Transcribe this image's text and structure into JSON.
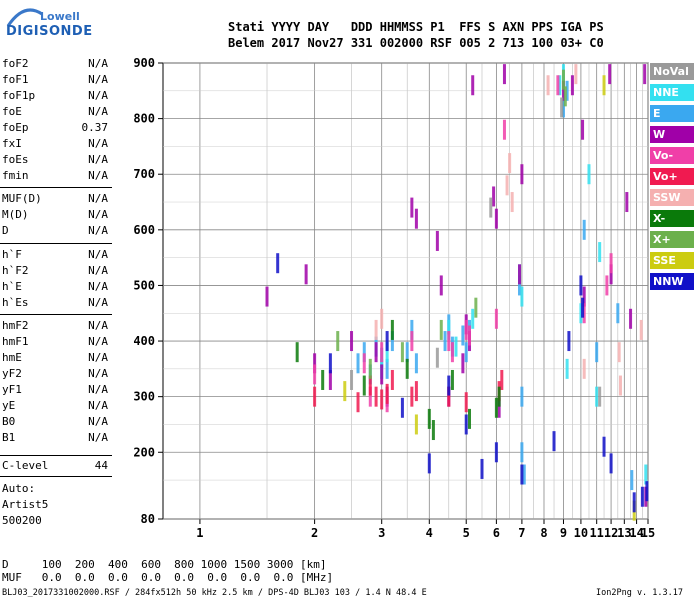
{
  "logo": {
    "line1": "Lowell",
    "line2": "DIGISONDE"
  },
  "header": {
    "labels": "Stati YYYY DAY   DDD HHMMSS P1  FFS S AXN PPS IGA PS",
    "values": "Belem 2017 Nov27 331 002000 RSF 005 2 713 100 03+ C0"
  },
  "parameters": {
    "group1": [
      {
        "name": "foF2",
        "value": "N/A"
      },
      {
        "name": "foF1",
        "value": "N/A"
      },
      {
        "name": "foF1p",
        "value": "N/A"
      },
      {
        "name": "foE",
        "value": "N/A"
      },
      {
        "name": "foEp",
        "value": "0.37"
      },
      {
        "name": "fxI",
        "value": "N/A"
      },
      {
        "name": "foEs",
        "value": "N/A"
      },
      {
        "name": "fmin",
        "value": "N/A"
      }
    ],
    "group2": [
      {
        "name": "MUF(D)",
        "value": "N/A"
      },
      {
        "name": "M(D)",
        "value": "N/A"
      },
      {
        "name": "D",
        "value": "N/A"
      }
    ],
    "group3": [
      {
        "name": "h`F",
        "value": "N/A"
      },
      {
        "name": "h`F2",
        "value": "N/A"
      },
      {
        "name": "h`E",
        "value": "N/A"
      },
      {
        "name": "h`Es",
        "value": "N/A"
      }
    ],
    "group4": [
      {
        "name": "hmF2",
        "value": "N/A"
      },
      {
        "name": "hmF1",
        "value": "N/A"
      },
      {
        "name": "hmE",
        "value": "N/A"
      },
      {
        "name": "yF2",
        "value": "N/A"
      },
      {
        "name": "yF1",
        "value": "N/A"
      },
      {
        "name": "yE",
        "value": "N/A"
      },
      {
        "name": "B0",
        "value": "N/A"
      },
      {
        "name": "B1",
        "value": "N/A"
      }
    ],
    "clevel": {
      "name": "C-level",
      "value": "44"
    }
  },
  "auto": {
    "line1": "Auto:",
    "line2": "Artist5",
    "line3": "500200"
  },
  "bottom": {
    "d_row": "D     100  200  400  600  800 1000 1500 3000 [km]",
    "muf_row": "MUF   0.0  0.0  0.0  0.0  0.0  0.0  0.0  0.0 [MHz]"
  },
  "footer": {
    "left": "BLJ03_2017331002000.RSF / 284fx512h 50 kHz 2.5 km / DPS-4D BLJ03 103 / 1.4 N 48.4 E",
    "right": "Ion2Png v. 1.3.17"
  },
  "legend": [
    {
      "label": "NoVal",
      "color": "#9a9a9a"
    },
    {
      "label": "NNE",
      "color": "#33e0f0"
    },
    {
      "label": "E",
      "color": "#3aa8f0"
    },
    {
      "label": "W",
      "color": "#a000a8"
    },
    {
      "label": "Vo-",
      "color": "#f03fa8"
    },
    {
      "label": "Vo+",
      "color": "#f01a50"
    },
    {
      "label": "SSW",
      "color": "#f5b0b0"
    },
    {
      "label": "X-",
      "color": "#0a7a0a"
    },
    {
      "label": "X+",
      "color": "#6cb04c"
    },
    {
      "label": "SSE",
      "color": "#cccc10"
    },
    {
      "label": "NNW",
      "color": "#1010c8"
    }
  ],
  "chart_data": {
    "type": "scatter",
    "title": "",
    "xlabel": "",
    "ylabel": "",
    "x_scale": "log",
    "xlim": [
      0.8,
      15
    ],
    "ylim": [
      80,
      900
    ],
    "x_ticks": [
      1,
      2,
      3,
      4,
      5,
      6,
      7,
      8,
      9,
      10,
      11,
      12,
      13,
      14,
      15
    ],
    "y_ticks": [
      80,
      200,
      300,
      400,
      500,
      600,
      700,
      800,
      900
    ],
    "grid": true,
    "series": [
      {
        "color": "#3aa8f0",
        "x": [
          2.6,
          2.7,
          2.8,
          2.9,
          3.0,
          3.1,
          3.2,
          3.5,
          3.6,
          3.7,
          4.4,
          4.5,
          4.6,
          4.9,
          5.0,
          5.1,
          6.9,
          7.0,
          7.0,
          7.1,
          9.0,
          9.2,
          10.2,
          11.0,
          12.5,
          13.6
        ],
        "y": [
          360,
          380,
          340,
          390,
          370,
          350,
          400,
          380,
          420,
          360,
          400,
          430,
          390,
          410,
          380,
          420,
          500,
          300,
          200,
          160,
          820,
          850,
          600,
          380,
          450,
          150
        ]
      },
      {
        "color": "#33e0f0",
        "x": [
          3.0,
          3.1,
          4.5,
          4.7,
          5.2,
          6.9,
          7.0,
          8.8,
          9.0,
          9.2,
          10.0,
          10.5,
          11.0,
          11.2,
          14.8
        ],
        "y": [
          350,
          380,
          420,
          390,
          440,
          520,
          480,
          860,
          880,
          350,
          450,
          700,
          300,
          560,
          160
        ]
      },
      {
        "color": "#a000a8",
        "x": [
          1.5,
          1.9,
          2.0,
          2.2,
          2.5,
          2.9,
          3.0,
          3.1,
          3.6,
          3.7,
          4.2,
          4.3,
          4.5,
          4.9,
          5.0,
          5.1,
          5.2,
          5.9,
          6.0,
          6.1,
          6.3,
          6.9,
          7.0,
          9.0,
          9.5,
          10.1,
          10.2,
          11.9,
          12.0,
          13.2,
          13.5,
          14.7,
          14.8
        ],
        "y": [
          480,
          520,
          360,
          330,
          400,
          380,
          340,
          300,
          640,
          620,
          580,
          500,
          300,
          360,
          430,
          400,
          860,
          660,
          620,
          280,
          880,
          520,
          700,
          850,
          860,
          780,
          480,
          880,
          520,
          650,
          440,
          880,
          120
        ]
      },
      {
        "color": "#f03fa8",
        "x": [
          2.0,
          2.7,
          2.8,
          3.0,
          3.1,
          3.6,
          4.5,
          4.6,
          5.0,
          5.1,
          6.0,
          6.3,
          8.7,
          10.2,
          11.7,
          12.0
        ],
        "y": [
          340,
          360,
          300,
          380,
          290,
          400,
          400,
          380,
          420,
          410,
          440,
          780,
          860,
          450,
          500,
          540
        ]
      },
      {
        "color": "#f01a50",
        "x": [
          2.0,
          2.6,
          2.8,
          2.9,
          3.0,
          3.1,
          3.2,
          3.6,
          3.7,
          4.5,
          5.0,
          6.1,
          6.2
        ],
        "y": [
          300,
          290,
          320,
          300,
          295,
          305,
          330,
          300,
          310,
          300,
          290,
          310,
          330
        ]
      },
      {
        "color": "#f5b0b0",
        "x": [
          2.9,
          3.0,
          6.4,
          6.5,
          6.6,
          8.2,
          9.7,
          10.2,
          12.6,
          12.7,
          14.4
        ],
        "y": [
          420,
          440,
          680,
          720,
          650,
          860,
          880,
          350,
          380,
          320,
          420
        ]
      },
      {
        "color": "#0a7a0a",
        "x": [
          1.8,
          2.1,
          2.7,
          3.2,
          3.5,
          4.0,
          4.1,
          4.6,
          5.1,
          6.0,
          6.1
        ],
        "y": [
          380,
          330,
          320,
          420,
          350,
          260,
          240,
          330,
          260,
          280,
          300
        ]
      },
      {
        "color": "#6cb04c",
        "x": [
          2.3,
          2.8,
          3.4,
          4.3,
          5.3,
          9.0,
          9.1
        ],
        "y": [
          400,
          350,
          380,
          420,
          460,
          870,
          840
        ]
      },
      {
        "color": "#cccc10",
        "x": [
          2.4,
          3.7,
          11.5,
          13.8
        ],
        "y": [
          310,
          250,
          860,
          95
        ]
      },
      {
        "color": "#1010c8",
        "x": [
          1.6,
          2.2,
          3.1,
          3.4,
          4.0,
          4.5,
          5.0,
          5.5,
          6.0,
          7.0,
          8.5,
          9.3,
          10.0,
          10.1,
          11.5,
          12.0,
          13.8,
          14.5,
          14.9
        ],
        "y": [
          540,
          360,
          400,
          280,
          180,
          320,
          250,
          170,
          200,
          160,
          220,
          400,
          500,
          460,
          210,
          180,
          110,
          120,
          130
        ]
      },
      {
        "color": "#9a9a9a",
        "x": [
          2.5,
          4.2,
          5.8,
          8.9,
          11.2
        ],
        "y": [
          330,
          370,
          640,
          820,
          300
        ]
      }
    ]
  }
}
